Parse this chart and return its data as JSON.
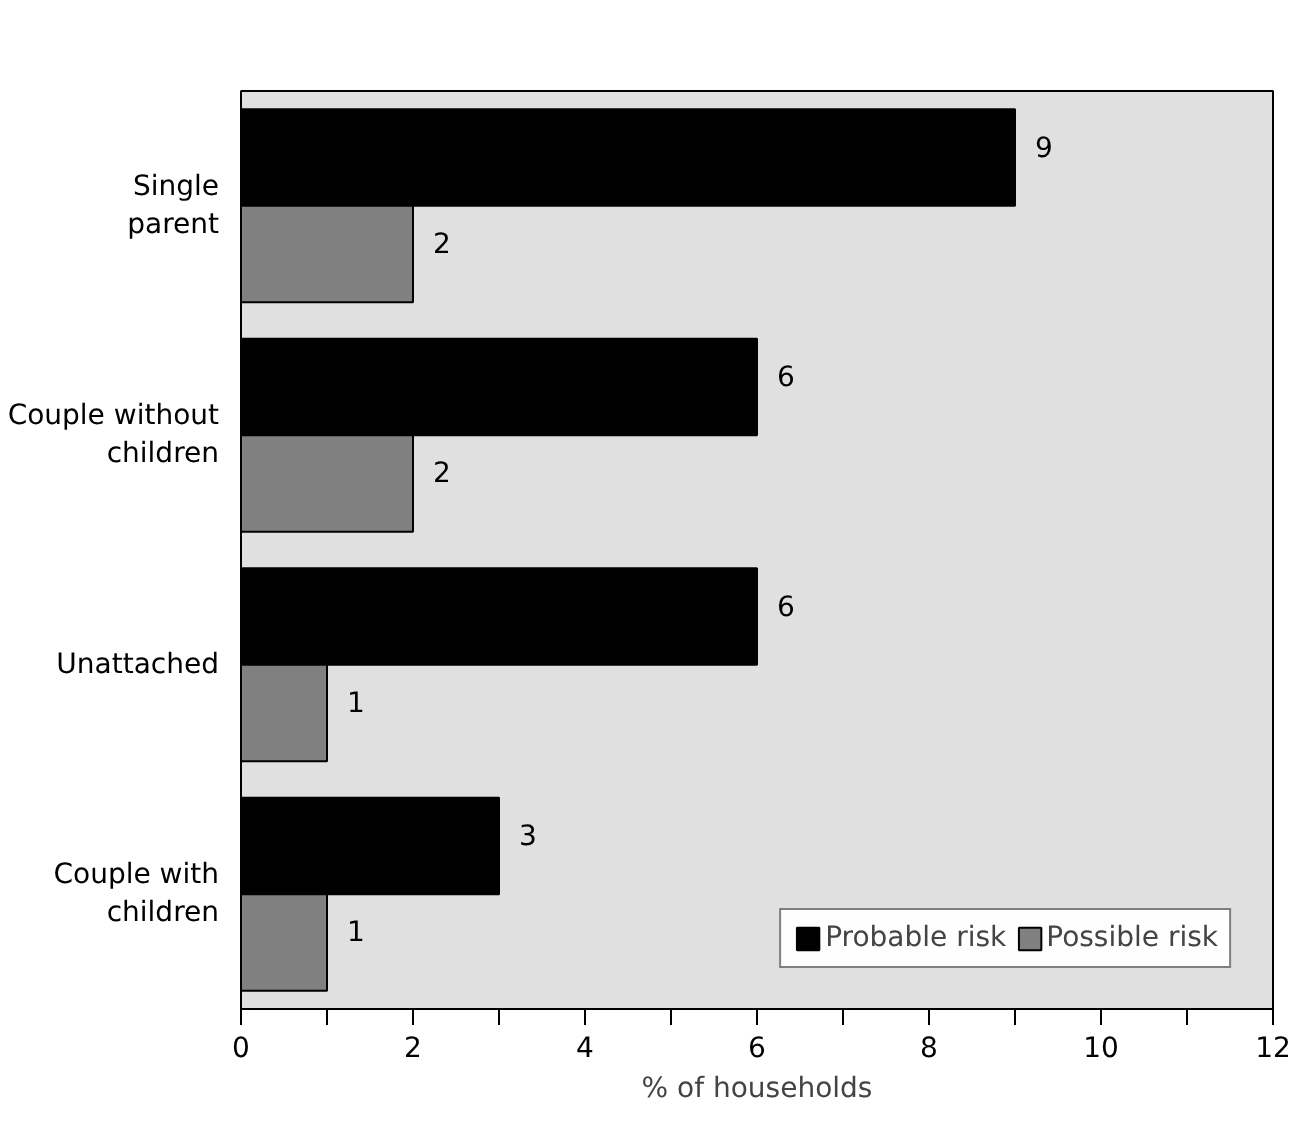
{
  "chart_data": {
    "type": "bar",
    "orientation": "horizontal",
    "xlabel": "% of households",
    "categories": [
      "Single parent",
      "Couple without children",
      "Unattached",
      "Couple with children"
    ],
    "series": [
      {
        "name": "Probable risk",
        "color": "#000000",
        "values": [
          9,
          6,
          6,
          3
        ]
      },
      {
        "name": "Possible risk",
        "color": "#808080",
        "values": [
          2,
          2,
          1,
          1
        ]
      }
    ],
    "xlim": [
      0,
      12
    ],
    "xticks": [
      0,
      {
        "value": 1,
        "label": null
      },
      2,
      {
        "value": 3,
        "label": null
      },
      4,
      {
        "value": 5,
        "label": null
      },
      6,
      {
        "value": 7,
        "label": null
      },
      8,
      {
        "value": 9,
        "label": null
      },
      10,
      {
        "value": 11,
        "label": null
      },
      12
    ],
    "data_labels": true,
    "legend": "bottom right",
    "grid": false
  }
}
